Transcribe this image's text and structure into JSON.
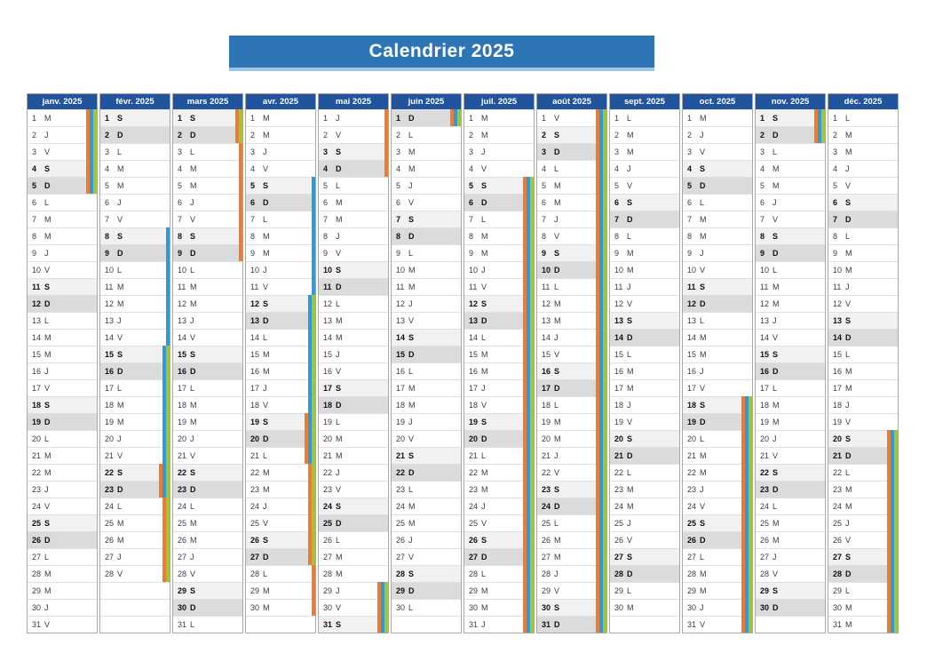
{
  "title": "Calendrier 2025",
  "colors": {
    "title_bar": "#2E75B6",
    "title_underline": "#9DC3E6",
    "month_header": "#21549D",
    "saturday_bg": "#F1F1F1",
    "sunday_bg": "#DBDBDB",
    "zones": {
      "A": "#ED7C31",
      "B": "#2E9BD8",
      "C": "#9FC63B"
    }
  },
  "months": [
    {
      "label": "janv. 2025",
      "days": [
        "M",
        "J",
        "V",
        "S",
        "D",
        "L",
        "M",
        "M",
        "J",
        "V",
        "S",
        "D",
        "L",
        "M",
        "M",
        "J",
        "V",
        "S",
        "D",
        "L",
        "M",
        "M",
        "J",
        "V",
        "S",
        "D",
        "L",
        "M",
        "M",
        "J",
        "V"
      ],
      "stripes": [
        {
          "zone": "A",
          "from": 1,
          "to": 5
        },
        {
          "zone": "B",
          "from": 1,
          "to": 5
        },
        {
          "zone": "C",
          "from": 1,
          "to": 5
        }
      ]
    },
    {
      "label": "févr. 2025",
      "days": [
        "S",
        "D",
        "L",
        "M",
        "M",
        "J",
        "V",
        "S",
        "D",
        "L",
        "M",
        "M",
        "J",
        "V",
        "S",
        "D",
        "L",
        "M",
        "M",
        "J",
        "V",
        "S",
        "D",
        "L",
        "M",
        "M",
        "J",
        "V"
      ],
      "stripes": [
        {
          "zone": "A",
          "from": 22,
          "to": 28
        },
        {
          "zone": "B",
          "from": 8,
          "to": 23
        },
        {
          "zone": "C",
          "from": 15,
          "to": 28
        }
      ]
    },
    {
      "label": "mars 2025",
      "days": [
        "S",
        "D",
        "L",
        "M",
        "M",
        "J",
        "V",
        "S",
        "D",
        "L",
        "M",
        "M",
        "J",
        "V",
        "S",
        "D",
        "L",
        "M",
        "M",
        "J",
        "V",
        "S",
        "D",
        "L",
        "M",
        "M",
        "J",
        "V",
        "S",
        "D",
        "L"
      ],
      "stripes": [
        {
          "zone": "A",
          "from": 1,
          "to": 9
        },
        {
          "zone": "C",
          "from": 1,
          "to": 2
        }
      ]
    },
    {
      "label": "avr. 2025",
      "days": [
        "M",
        "M",
        "J",
        "V",
        "S",
        "D",
        "L",
        "M",
        "M",
        "J",
        "V",
        "S",
        "D",
        "L",
        "M",
        "M",
        "J",
        "V",
        "S",
        "D",
        "L",
        "M",
        "M",
        "J",
        "V",
        "S",
        "D",
        "L",
        "M",
        "M"
      ],
      "stripes": [
        {
          "zone": "A",
          "from": 19,
          "to": 30
        },
        {
          "zone": "B",
          "from": 5,
          "to": 21
        },
        {
          "zone": "C",
          "from": 12,
          "to": 27
        }
      ]
    },
    {
      "label": "mai 2025",
      "days": [
        "J",
        "V",
        "S",
        "D",
        "L",
        "M",
        "M",
        "J",
        "V",
        "S",
        "D",
        "L",
        "M",
        "M",
        "J",
        "V",
        "S",
        "D",
        "L",
        "M",
        "M",
        "J",
        "V",
        "S",
        "D",
        "L",
        "M",
        "M",
        "J",
        "V",
        "S"
      ],
      "stripes": [
        {
          "zone": "A",
          "from": 1,
          "to": 4
        },
        {
          "zone": "A",
          "from": 29,
          "to": 31
        },
        {
          "zone": "B",
          "from": 29,
          "to": 31
        },
        {
          "zone": "C",
          "from": 29,
          "to": 31
        }
      ]
    },
    {
      "label": "juin 2025",
      "days": [
        "D",
        "L",
        "M",
        "M",
        "J",
        "V",
        "S",
        "D",
        "L",
        "M",
        "M",
        "J",
        "V",
        "S",
        "D",
        "L",
        "M",
        "M",
        "J",
        "V",
        "S",
        "D",
        "L",
        "M",
        "M",
        "J",
        "V",
        "S",
        "D",
        "L"
      ],
      "stripes": [
        {
          "zone": "A",
          "from": 1,
          "to": 1
        },
        {
          "zone": "B",
          "from": 1,
          "to": 1
        },
        {
          "zone": "C",
          "from": 1,
          "to": 1
        }
      ]
    },
    {
      "label": "juil. 2025",
      "days": [
        "M",
        "M",
        "J",
        "V",
        "S",
        "D",
        "L",
        "M",
        "M",
        "J",
        "V",
        "S",
        "D",
        "L",
        "M",
        "M",
        "J",
        "V",
        "S",
        "D",
        "L",
        "M",
        "M",
        "J",
        "V",
        "S",
        "D",
        "L",
        "M",
        "M",
        "J"
      ],
      "stripes": [
        {
          "zone": "A",
          "from": 5,
          "to": 31
        },
        {
          "zone": "B",
          "from": 5,
          "to": 31
        },
        {
          "zone": "C",
          "from": 5,
          "to": 31
        }
      ]
    },
    {
      "label": "août 2025",
      "days": [
        "V",
        "S",
        "D",
        "L",
        "M",
        "M",
        "J",
        "V",
        "S",
        "D",
        "L",
        "M",
        "M",
        "J",
        "V",
        "S",
        "D",
        "L",
        "M",
        "M",
        "J",
        "V",
        "S",
        "D",
        "L",
        "M",
        "M",
        "J",
        "V",
        "S",
        "D"
      ],
      "stripes": [
        {
          "zone": "A",
          "from": 1,
          "to": 31
        },
        {
          "zone": "B",
          "from": 1,
          "to": 31
        },
        {
          "zone": "C",
          "from": 1,
          "to": 31
        }
      ]
    },
    {
      "label": "sept. 2025",
      "days": [
        "L",
        "M",
        "M",
        "J",
        "V",
        "S",
        "D",
        "L",
        "M",
        "M",
        "J",
        "V",
        "S",
        "D",
        "L",
        "M",
        "M",
        "J",
        "V",
        "S",
        "D",
        "L",
        "M",
        "M",
        "J",
        "V",
        "S",
        "D",
        "L",
        "M"
      ],
      "stripes": []
    },
    {
      "label": "oct. 2025",
      "days": [
        "M",
        "J",
        "V",
        "S",
        "D",
        "L",
        "M",
        "M",
        "J",
        "V",
        "S",
        "D",
        "L",
        "M",
        "M",
        "J",
        "V",
        "S",
        "D",
        "L",
        "M",
        "M",
        "J",
        "V",
        "S",
        "D",
        "L",
        "M",
        "M",
        "J",
        "V"
      ],
      "stripes": [
        {
          "zone": "A",
          "from": 18,
          "to": 31
        },
        {
          "zone": "B",
          "from": 18,
          "to": 31
        },
        {
          "zone": "C",
          "from": 18,
          "to": 31
        }
      ]
    },
    {
      "label": "nov. 2025",
      "days": [
        "S",
        "D",
        "L",
        "M",
        "M",
        "J",
        "V",
        "S",
        "D",
        "L",
        "M",
        "M",
        "J",
        "V",
        "S",
        "D",
        "L",
        "M",
        "M",
        "J",
        "V",
        "S",
        "D",
        "L",
        "M",
        "M",
        "J",
        "V",
        "S",
        "D"
      ],
      "stripes": [
        {
          "zone": "A",
          "from": 1,
          "to": 2
        },
        {
          "zone": "B",
          "from": 1,
          "to": 2
        },
        {
          "zone": "C",
          "from": 1,
          "to": 2
        }
      ]
    },
    {
      "label": "déc. 2025",
      "days": [
        "L",
        "M",
        "M",
        "J",
        "V",
        "S",
        "D",
        "L",
        "M",
        "M",
        "J",
        "V",
        "S",
        "D",
        "L",
        "M",
        "M",
        "J",
        "V",
        "S",
        "D",
        "L",
        "M",
        "M",
        "J",
        "V",
        "S",
        "D",
        "L",
        "M",
        "M"
      ],
      "stripes": [
        {
          "zone": "A",
          "from": 20,
          "to": 31
        },
        {
          "zone": "B",
          "from": 20,
          "to": 31
        },
        {
          "zone": "C",
          "from": 20,
          "to": 31
        }
      ]
    }
  ]
}
